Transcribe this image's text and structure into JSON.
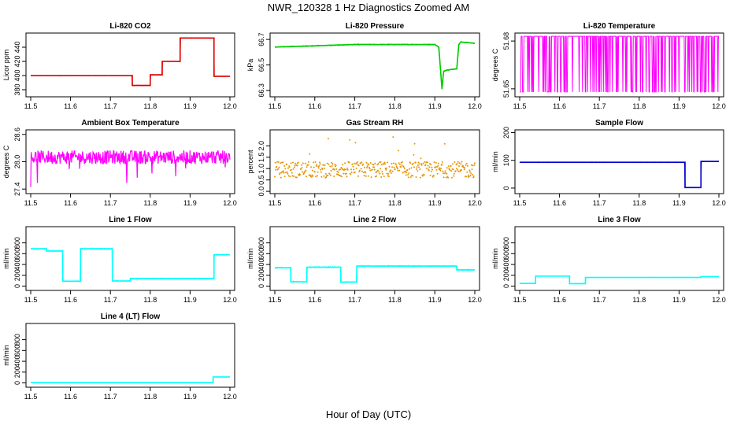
{
  "page": {
    "title": "NWR_120328  1 Hz Diagnostics Zoomed AM",
    "xlabel": "Hour of Day (UTC)"
  },
  "chart_data": [
    {
      "type": "line",
      "title": "Li-820 CO2",
      "ylabel": "Licor ppm",
      "color": "#e00000",
      "xlim": [
        11.5,
        12.0
      ],
      "xticks": [
        "11.5",
        "11.6",
        "11.7",
        "11.8",
        "11.9",
        "12.0"
      ],
      "ylim": [
        370,
        460
      ],
      "yticks": [
        380,
        400,
        420,
        440
      ],
      "x": [
        11.5,
        11.755,
        11.755,
        11.8,
        11.8,
        11.83,
        11.83,
        11.875,
        11.875,
        11.96,
        11.96,
        12.0
      ],
      "y": [
        400,
        400,
        386,
        386,
        401,
        401,
        420,
        420,
        453,
        453,
        399,
        399
      ],
      "noise": 0.6,
      "noise_amp": 0.5
    },
    {
      "type": "line",
      "title": "Li-820 Pressure",
      "ylabel": "kPa",
      "color": "#00cc00",
      "xlim": [
        11.5,
        12.0
      ],
      "xticks": [
        "11.5",
        "11.6",
        "11.7",
        "11.8",
        "11.9",
        "12.0"
      ],
      "ylim": [
        66.25,
        66.75
      ],
      "yticks": [
        "66.3",
        "66.5",
        "66.7"
      ],
      "x": [
        11.5,
        11.6,
        11.7,
        11.8,
        11.9,
        11.91,
        11.918,
        11.922,
        11.93,
        11.955,
        11.96,
        11.965,
        12.0
      ],
      "y": [
        66.64,
        66.65,
        66.66,
        66.66,
        66.66,
        66.64,
        66.31,
        66.45,
        66.46,
        66.47,
        66.66,
        66.68,
        66.67
      ],
      "noise": 0.005,
      "noise_amp": 0.7
    },
    {
      "type": "line",
      "title": "Li-820 Temperature",
      "ylabel": "degrees C",
      "color": "#ff00ff",
      "xlim": [
        11.5,
        12.0
      ],
      "xticks": [
        "11.5",
        "11.6",
        "11.7",
        "11.8",
        "11.9",
        "12.0"
      ],
      "ylim": [
        51.645,
        51.685
      ],
      "yticks": [
        "51.65",
        "51.68"
      ],
      "x": [
        11.5,
        12.0
      ],
      "y": [
        51.67,
        51.67
      ],
      "noise": 0.02,
      "noise_amp": 1.0,
      "binary": [
        51.648,
        51.683
      ]
    },
    {
      "type": "line",
      "title": "Ambient Box Temperature",
      "ylabel": "degrees C",
      "color": "#ff00ff",
      "xlim": [
        11.5,
        12.0
      ],
      "xticks": [
        "11.5",
        "11.6",
        "11.7",
        "11.8",
        "11.9",
        "12.0"
      ],
      "ylim": [
        27.3,
        28.7
      ],
      "yticks": [
        "27.4",
        "28.0",
        "28.6"
      ],
      "x": [
        11.5,
        12.0
      ],
      "y": [
        28.1,
        28.1
      ],
      "noise": 0.15,
      "noise_amp": 1.0
    },
    {
      "type": "scatter",
      "title": "Gas Stream RH",
      "ylabel": "percent",
      "color": "#e69500",
      "xlim": [
        11.5,
        12.0
      ],
      "xticks": [
        "11.5",
        "11.6",
        "11.7",
        "11.8",
        "11.9",
        "12.0"
      ],
      "ylim": [
        -0.1,
        2.7
      ],
      "yticks": [
        "0.0",
        "0.5",
        "1.0",
        "1.5",
        "2.0"
      ],
      "x": [
        11.5,
        12.0
      ],
      "y": [
        0.95,
        0.95
      ],
      "noise": 0.35,
      "noise_amp": 1.0
    },
    {
      "type": "line",
      "title": "Sample Flow",
      "ylabel": "ml/min",
      "color": "#0000cc",
      "xlim": [
        11.5,
        12.0
      ],
      "xticks": [
        "11.5",
        "11.6",
        "11.7",
        "11.8",
        "11.9",
        "12.0"
      ],
      "ylim": [
        -20,
        210
      ],
      "yticks": [
        0,
        100,
        200
      ],
      "x": [
        11.5,
        11.915,
        11.915,
        11.955,
        11.955,
        12.0
      ],
      "y": [
        93,
        93,
        2,
        2,
        96,
        96
      ],
      "noise": 1.2,
      "noise_amp": 0.6
    },
    {
      "type": "line",
      "title": "Line 1 Flow",
      "ylabel": "ml/min",
      "color": "#00ffff",
      "xlim": [
        11.5,
        12.0
      ],
      "xticks": [
        "11.5",
        "11.6",
        "11.7",
        "11.8",
        "11.9",
        "12.0"
      ],
      "ylim": [
        -80,
        1100
      ],
      "yticks": [
        0,
        200,
        400,
        600,
        800
      ],
      "x": [
        11.5,
        11.54,
        11.54,
        11.58,
        11.58,
        11.625,
        11.625,
        11.705,
        11.705,
        11.75,
        11.75,
        11.96,
        11.96,
        12.0
      ],
      "y": [
        690,
        690,
        650,
        650,
        90,
        90,
        690,
        690,
        95,
        95,
        140,
        140,
        580,
        580
      ],
      "noise": 12,
      "noise_amp": 0.6
    },
    {
      "type": "line",
      "title": "Line 2 Flow",
      "ylabel": "ml/min",
      "color": "#00ffff",
      "xlim": [
        11.5,
        12.0
      ],
      "xticks": [
        "11.5",
        "11.6",
        "11.7",
        "11.8",
        "11.9",
        "12.0"
      ],
      "ylim": [
        -80,
        1100
      ],
      "yticks": [
        0,
        200,
        400,
        600,
        800
      ],
      "x": [
        11.5,
        11.54,
        11.54,
        11.58,
        11.58,
        11.665,
        11.665,
        11.705,
        11.705,
        11.955,
        11.955,
        12.0
      ],
      "y": [
        340,
        340,
        80,
        80,
        350,
        350,
        75,
        75,
        370,
        370,
        300,
        300
      ],
      "noise": 15,
      "noise_amp": 0.6
    },
    {
      "type": "line",
      "title": "Line 3 Flow",
      "ylabel": "ml/min",
      "color": "#00ffff",
      "xlim": [
        11.5,
        12.0
      ],
      "xticks": [
        "11.5",
        "11.6",
        "11.7",
        "11.8",
        "11.9",
        "12.0"
      ],
      "ylim": [
        -80,
        1100
      ],
      "yticks": [
        0,
        200,
        400,
        600,
        800
      ],
      "x": [
        11.5,
        11.54,
        11.54,
        11.625,
        11.625,
        11.665,
        11.665,
        11.955,
        11.955,
        12.0
      ],
      "y": [
        50,
        50,
        185,
        185,
        45,
        45,
        160,
        160,
        175,
        175
      ],
      "noise": 3,
      "noise_amp": 0.4
    },
    {
      "type": "line",
      "title": "Line 4 (LT) Flow",
      "ylabel": "ml/min",
      "color": "#00ffff",
      "xlim": [
        11.5,
        12.0
      ],
      "xticks": [
        "11.5",
        "11.6",
        "11.7",
        "11.8",
        "11.9",
        "12.0"
      ],
      "ylim": [
        -80,
        1100
      ],
      "yticks": [
        0,
        200,
        400,
        600,
        800
      ],
      "x": [
        11.5,
        11.958,
        11.958,
        12.0
      ],
      "y": [
        5,
        5,
        110,
        110
      ],
      "noise": 2,
      "noise_amp": 0.4
    }
  ]
}
